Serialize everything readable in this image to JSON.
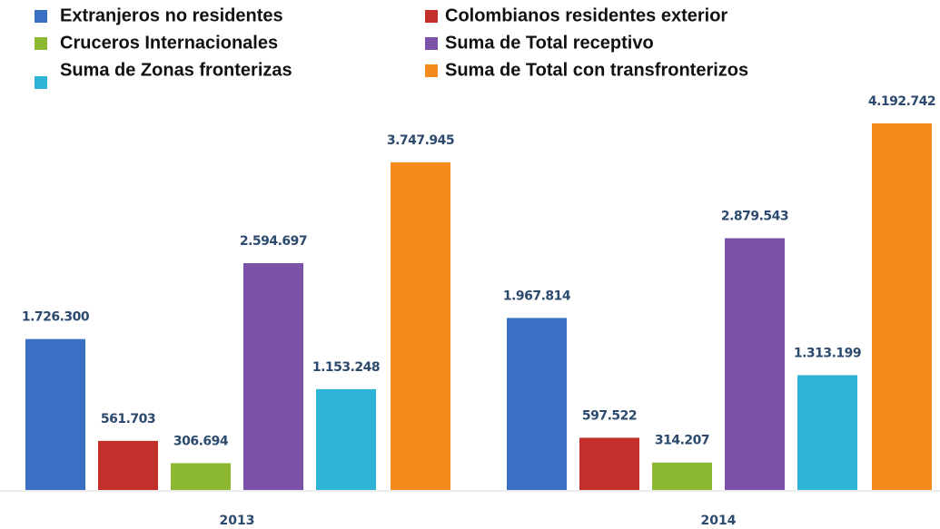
{
  "chart_data": {
    "type": "bar",
    "categories": [
      "2013",
      "2014"
    ],
    "series": [
      {
        "name": "Extranjeros no residentes",
        "color": "#3a70c4",
        "values": [
          1726300,
          1967814
        ],
        "value_labels": [
          "1.726.300",
          "1.967.814"
        ]
      },
      {
        "name": "Colombianos residentes exterior",
        "color": "#c3302c",
        "values": [
          561703,
          597522
        ],
        "value_labels": [
          "561.703",
          "597.522"
        ]
      },
      {
        "name": "Cruceros Internacionales",
        "color": "#8db832",
        "values": [
          306694,
          314207
        ],
        "value_labels": [
          "306.694",
          "314.207"
        ]
      },
      {
        "name": "Suma de Total receptivo",
        "color": "#7b52a8",
        "values": [
          2594697,
          2879543
        ],
        "value_labels": [
          "2.594.697",
          "2.879.543"
        ]
      },
      {
        "name": "Suma de Zonas fronterizas",
        "color": "#2fb3d6",
        "values": [
          1153248,
          1313199
        ],
        "value_labels": [
          "1.153.248",
          "1.313.199"
        ]
      },
      {
        "name": "Suma de Total con transfronterizos",
        "color": "#f58a1c",
        "values": [
          3747945,
          4192742
        ],
        "value_labels": [
          "3.747.945",
          "4.192.742"
        ]
      }
    ],
    "legend": "top"
  }
}
